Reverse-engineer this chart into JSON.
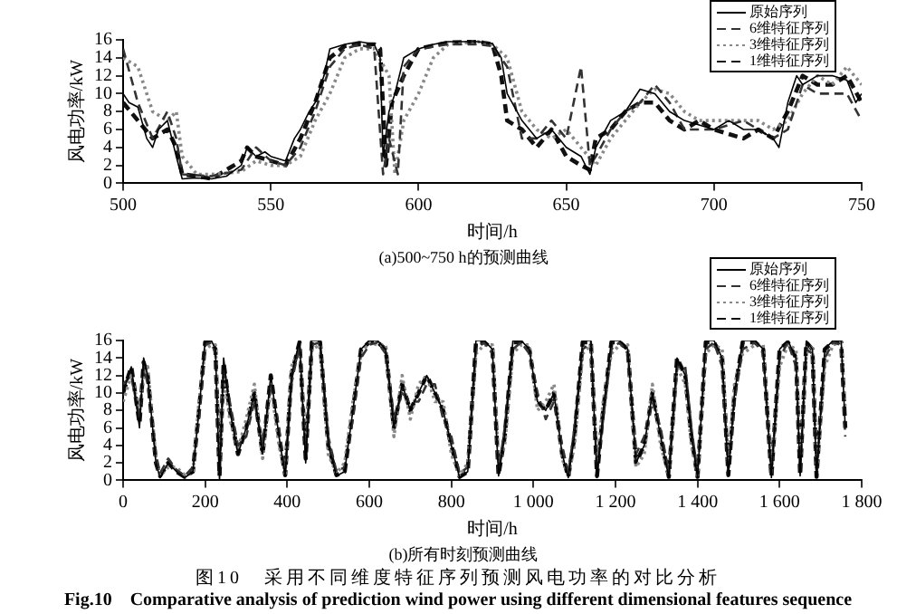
{
  "chart_data": [
    {
      "type": "line",
      "title": "(a)500~750 h的预测曲线",
      "xlabel": "时间/h",
      "ylabel": "风电功率/kW",
      "xlim": [
        500,
        750
      ],
      "ylim": [
        0,
        16
      ],
      "xticks": [
        500,
        550,
        600,
        650,
        700,
        750
      ],
      "yticks": [
        0,
        2,
        4,
        6,
        8,
        10,
        12,
        14,
        16
      ],
      "grid": false,
      "legend": "top right",
      "series": [
        {
          "name": "原始序列",
          "color": "#000000",
          "line_style": "solid",
          "x": [
            500,
            502,
            505,
            508,
            510,
            512,
            515,
            518,
            520,
            525,
            530,
            535,
            540,
            542,
            545,
            548,
            550,
            555,
            558,
            560,
            563,
            565,
            568,
            570,
            575,
            580,
            585,
            587,
            588,
            590,
            592,
            595,
            600,
            605,
            610,
            615,
            620,
            625,
            628,
            630,
            635,
            640,
            645,
            650,
            655,
            658,
            660,
            665,
            670,
            675,
            680,
            685,
            690,
            695,
            700,
            705,
            710,
            715,
            720,
            722,
            725,
            728,
            730,
            735,
            740,
            745,
            748,
            750
          ],
          "values": [
            10,
            9,
            8.5,
            5,
            4,
            6,
            7,
            3,
            0.5,
            0.6,
            0.5,
            0.8,
            2,
            4,
            3,
            3.5,
            3,
            2.5,
            5,
            6,
            8,
            9,
            12,
            15,
            15.5,
            15.8,
            15.5,
            14,
            3,
            8,
            10,
            14,
            15,
            15.5,
            15.8,
            15.8,
            15.8,
            15.6,
            14,
            10,
            7,
            5,
            6,
            4,
            3,
            1,
            4,
            7,
            8,
            10.5,
            10,
            8,
            7,
            6.5,
            6,
            7,
            6,
            6,
            5,
            4,
            9,
            12,
            11,
            12,
            12,
            11.5,
            9,
            10
          ]
        },
        {
          "name": "6维特征序列",
          "color": "#333333",
          "line_style": "dashed",
          "x": [
            500,
            505,
            510,
            515,
            518,
            520,
            530,
            540,
            545,
            550,
            555,
            560,
            565,
            570,
            575,
            580,
            585,
            588,
            590,
            593,
            595,
            600,
            610,
            620,
            625,
            630,
            635,
            640,
            645,
            650,
            655,
            658,
            660,
            665,
            670,
            675,
            680,
            685,
            690,
            695,
            700,
            710,
            715,
            720,
            725,
            730,
            735,
            740,
            745,
            750
          ],
          "values": [
            15,
            9,
            5,
            8,
            5,
            1,
            0.8,
            1.5,
            4,
            2.5,
            2,
            4,
            8,
            13,
            15,
            15.5,
            15,
            1,
            5,
            1,
            13,
            15,
            15.5,
            15.5,
            15.3,
            13,
            5,
            5,
            7,
            5,
            13,
            2,
            3,
            6,
            8,
            9,
            11,
            9,
            6,
            6,
            6,
            7,
            6,
            5,
            6,
            11,
            10,
            10,
            10,
            7
          ]
        },
        {
          "name": "3维特征序列",
          "color": "#888888",
          "line_style": "dotted",
          "x": [
            500,
            505,
            510,
            515,
            518,
            520,
            525,
            530,
            540,
            545,
            550,
            555,
            560,
            565,
            570,
            575,
            580,
            585,
            590,
            592,
            595,
            600,
            605,
            610,
            620,
            625,
            630,
            635,
            640,
            645,
            650,
            655,
            660,
            665,
            670,
            675,
            680,
            685,
            690,
            695,
            700,
            710,
            715,
            720,
            725,
            730,
            735,
            740,
            745,
            750
          ],
          "values": [
            14,
            13,
            8,
            7,
            8,
            3,
            1,
            1,
            1.3,
            2.5,
            2,
            2,
            3,
            7,
            10,
            14,
            15,
            15,
            12,
            1,
            7,
            10,
            14,
            15.5,
            15.8,
            15.5,
            14,
            8,
            6,
            5,
            6,
            4,
            2,
            5,
            7,
            9,
            10.5,
            10,
            8,
            7,
            7,
            7,
            7,
            6,
            7,
            10,
            12,
            11,
            13,
            11
          ]
        },
        {
          "name": "1维特征序列",
          "color": "#111111",
          "line_style": "dashed",
          "x": [
            500,
            505,
            510,
            515,
            518,
            520,
            525,
            530,
            540,
            542,
            545,
            550,
            555,
            560,
            565,
            570,
            575,
            580,
            585,
            587,
            589,
            591,
            595,
            600,
            610,
            620,
            625,
            628,
            630,
            635,
            640,
            645,
            650,
            655,
            658,
            660,
            665,
            670,
            675,
            680,
            685,
            690,
            695,
            700,
            710,
            715,
            720,
            725,
            730,
            735,
            740,
            745,
            750
          ],
          "values": [
            9,
            7,
            5,
            6,
            4,
            1,
            0.8,
            0.5,
            2.5,
            4,
            3,
            2.5,
            2,
            5,
            9,
            14,
            15.3,
            15.5,
            15.5,
            15,
            2,
            9,
            12,
            15,
            15.7,
            15.8,
            15.5,
            12,
            7,
            6,
            4,
            6,
            3,
            2,
            1.5,
            5,
            6,
            8,
            9,
            9,
            7,
            6,
            7,
            6,
            5,
            6,
            5,
            8,
            12,
            11,
            11,
            12,
            9
          ]
        }
      ]
    },
    {
      "type": "line",
      "title": "(b)所有时刻预测曲线",
      "xlabel": "时间/h",
      "ylabel": "风电功率/kW",
      "xlim": [
        0,
        1800
      ],
      "ylim": [
        0,
        16
      ],
      "xticks": [
        0,
        200,
        400,
        600,
        800,
        {
          "value": 1000,
          "label": "1 000"
        },
        {
          "value": 1200,
          "label": "1 200"
        },
        {
          "value": 1400,
          "label": "1 400"
        },
        {
          "value": 1600,
          "label": "1 600"
        },
        {
          "value": 1800,
          "label": "1 800"
        }
      ],
      "yticks": [
        0,
        2,
        4,
        6,
        8,
        10,
        12,
        14,
        16
      ],
      "grid": false,
      "legend": "top right",
      "annotations": [
        "图10　采用不同维度特征序列预测风电功率的对比分析",
        "Fig.10　Comparative analysis of prediction wind power using different dimensional features sequence"
      ],
      "x": [
        0,
        20,
        40,
        50,
        60,
        80,
        90,
        110,
        130,
        150,
        170,
        185,
        200,
        215,
        225,
        235,
        245,
        260,
        280,
        300,
        320,
        340,
        360,
        380,
        395,
        410,
        430,
        445,
        460,
        480,
        500,
        520,
        540,
        560,
        580,
        600,
        620,
        640,
        660,
        680,
        700,
        720,
        740,
        760,
        780,
        800,
        820,
        840,
        860,
        880,
        900,
        915,
        930,
        950,
        970,
        990,
        1010,
        1030,
        1050,
        1070,
        1085,
        1100,
        1120,
        1140,
        1155,
        1170,
        1190,
        1210,
        1230,
        1250,
        1270,
        1290,
        1310,
        1330,
        1350,
        1370,
        1385,
        1400,
        1420,
        1440,
        1460,
        1475,
        1490,
        1510,
        1540,
        1560,
        1580,
        1600,
        1620,
        1640,
        1650,
        1665,
        1680,
        1690,
        1710,
        1730,
        1750,
        1760
      ],
      "series": [
        {
          "name": "原始序列",
          "color": "#000000",
          "line_style": "solid",
          "values": [
            10,
            13,
            6,
            14,
            12,
            2,
            0.3,
            2,
            1,
            0.3,
            1,
            8,
            16,
            16,
            15,
            0,
            14,
            8,
            3,
            6,
            10,
            3,
            12,
            5,
            0.5,
            12,
            16,
            2,
            16,
            16,
            4,
            0.5,
            1,
            8,
            15,
            16,
            16,
            15,
            6,
            11,
            8,
            10,
            12,
            10,
            8,
            4,
            0.3,
            1,
            16,
            16,
            15,
            0.5,
            5,
            16,
            16,
            15,
            9,
            8,
            10,
            3,
            0.3,
            5,
            16,
            16,
            0.3,
            8,
            16,
            16,
            15,
            2,
            4,
            10,
            5,
            0.3,
            14,
            12,
            5,
            0.3,
            16,
            16,
            14,
            0.5,
            10,
            16,
            16,
            15,
            0.3,
            15,
            16,
            14,
            0.5,
            16,
            15,
            0.3,
            15,
            16,
            16,
            6
          ]
        },
        {
          "name": "6维特征序列",
          "color": "#333333",
          "line_style": "dashed",
          "values": [
            11,
            12,
            7,
            13,
            11,
            3,
            0.8,
            2.5,
            1.2,
            0.5,
            1.5,
            7,
            15.5,
            15.8,
            14.5,
            1,
            13,
            9,
            4,
            5,
            9,
            4,
            11,
            6,
            1,
            11,
            15.5,
            3,
            15.5,
            15.8,
            5,
            1,
            1.5,
            7,
            14,
            15.5,
            15.8,
            14.5,
            7,
            10,
            9,
            9,
            11,
            11,
            7,
            5,
            0.8,
            1.5,
            15,
            15.8,
            14.5,
            1,
            6,
            15,
            15.8,
            14.5,
            10,
            7,
            9,
            4,
            0.8,
            6,
            15,
            15.8,
            1,
            7,
            15,
            15.8,
            14.5,
            3,
            5,
            9,
            6,
            0.8,
            13,
            13,
            6,
            0.8,
            15,
            15.8,
            13,
            1,
            9,
            15,
            15.8,
            14.5,
            0.8,
            14,
            15.8,
            13,
            1,
            15,
            14.5,
            0.8,
            14,
            15.8,
            15.5,
            5
          ]
        },
        {
          "name": "3维特征序列",
          "color": "#888888",
          "line_style": "dotted",
          "values": [
            9,
            12,
            8,
            12,
            13,
            2.5,
            0.5,
            1.5,
            1.5,
            0.6,
            0.8,
            9,
            15,
            15.5,
            15.5,
            2,
            12,
            7,
            3.5,
            7,
            11,
            2.5,
            11,
            4,
            0.8,
            13,
            15,
            4,
            15,
            15.5,
            3,
            0.8,
            2,
            9,
            14.5,
            15.8,
            15.5,
            15.5,
            5,
            12,
            7,
            11,
            12,
            9,
            9,
            3,
            0.5,
            2,
            14.5,
            15.5,
            15.5,
            2,
            4,
            14.5,
            15.5,
            15.5,
            8,
            9,
            11,
            2.5,
            0.5,
            4,
            14.5,
            15.5,
            2,
            9,
            14.5,
            15.5,
            15.5,
            1.5,
            3,
            11,
            4,
            0.6,
            13,
            11,
            4,
            0.6,
            14.5,
            15.5,
            15,
            2,
            11,
            14.5,
            15.5,
            15.5,
            1,
            13,
            15.5,
            15,
            2,
            14.5,
            15.5,
            1,
            13,
            15.5,
            15.8,
            8
          ]
        },
        {
          "name": "1维特征序列",
          "color": "#111111",
          "line_style": "dashed",
          "values": [
            10,
            13,
            6.5,
            13.5,
            12,
            2,
            0.5,
            2,
            1,
            0.4,
            1,
            8,
            15.8,
            15.8,
            15,
            0.5,
            13.5,
            8,
            3,
            6,
            10,
            3,
            12,
            5,
            0.6,
            12,
            15.8,
            2.5,
            15.8,
            15.8,
            4,
            0.6,
            1,
            8,
            15,
            15.8,
            15.8,
            15,
            6,
            11,
            8,
            10,
            12,
            10,
            8,
            4,
            0.4,
            1,
            15.8,
            15.8,
            15,
            0.6,
            5,
            15.8,
            15.8,
            15,
            9,
            8,
            10,
            3,
            0.4,
            5,
            15.8,
            15.8,
            0.5,
            8,
            15.8,
            15.8,
            15,
            2,
            4,
            10,
            5,
            0.4,
            14,
            12,
            5,
            0.4,
            15.8,
            15.8,
            14,
            0.6,
            10,
            15.8,
            15.8,
            15,
            0.4,
            15,
            15.8,
            14,
            0.6,
            15.8,
            15,
            0.4,
            15,
            15.8,
            15.8,
            6
          ]
        }
      ]
    }
  ]
}
